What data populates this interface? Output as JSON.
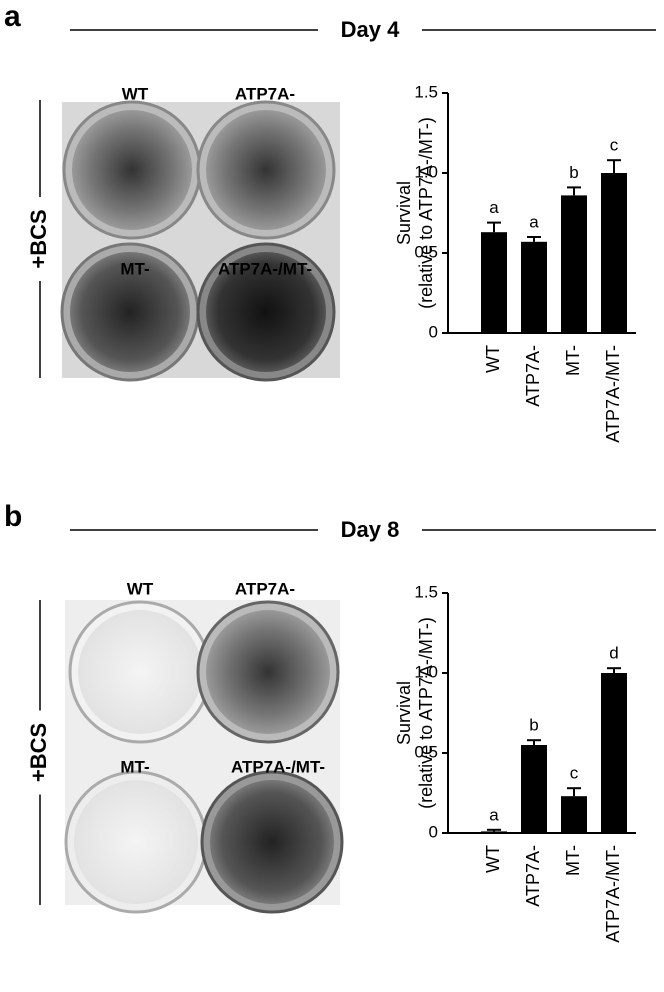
{
  "chart_data": [
    {
      "type": "bar",
      "panel": "a",
      "header": "Day 4",
      "side_label": "+BCS",
      "photo_labels": [
        "WT",
        "ATP7A-",
        "MT-",
        "ATP7A-/MT-"
      ],
      "ylabel": [
        "Survival",
        "(relative to ATP7A-/MT-)"
      ],
      "categories": [
        "WT",
        "ATP7A-",
        "MT-",
        "ATP7A-/MT-"
      ],
      "values": [
        0.63,
        0.57,
        0.86,
        1.0
      ],
      "errors": [
        0.06,
        0.03,
        0.05,
        0.08
      ],
      "annotations": [
        "a",
        "a",
        "b",
        "c"
      ],
      "color": "#000000",
      "ylim": [
        0,
        1.5
      ],
      "yticks": [
        0,
        0.5,
        {
          "value": 1,
          "label": "1.0"
        },
        1.5
      ]
    },
    {
      "type": "bar",
      "panel": "b",
      "header": "Day 8",
      "side_label": "+BCS",
      "photo_labels": [
        "WT",
        "ATP7A-",
        "MT-",
        "ATP7A-/MT-"
      ],
      "ylabel": [
        "Survival",
        "(relative to ATP7A-/MT-)"
      ],
      "categories": [
        "WT",
        "ATP7A-",
        "MT-",
        "ATP7A-/MT-"
      ],
      "values": [
        0.01,
        0.55,
        0.23,
        1.0
      ],
      "errors": [
        0.01,
        0.03,
        0.05,
        0.03
      ],
      "annotations": [
        "a",
        "b",
        "c",
        "d"
      ],
      "color": "#000000",
      "ylim": [
        0,
        1.5
      ],
      "yticks": [
        0,
        0.5,
        {
          "value": 1,
          "label": "1.0"
        },
        1.5
      ]
    }
  ]
}
